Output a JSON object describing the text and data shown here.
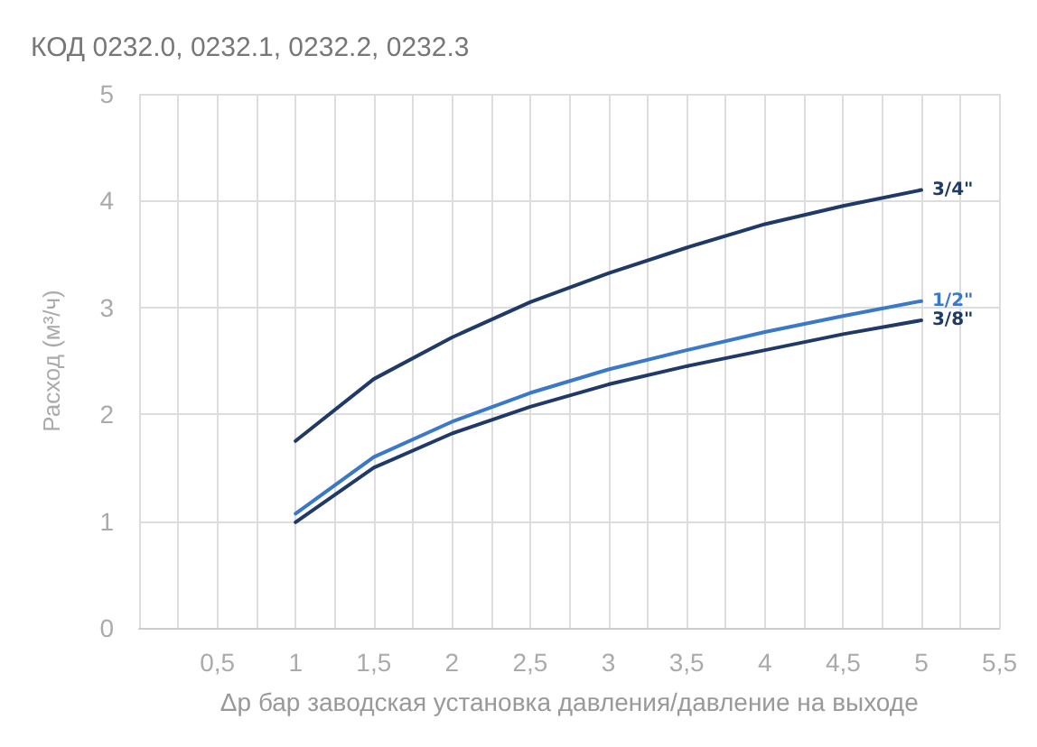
{
  "chart_data": {
    "type": "line",
    "title": "КОД 0232.0, 0232.1, 0232.2, 0232.3",
    "xlabel": "Δр бар заводская установка давления/давление на выходе",
    "ylabel": "Расход (м³/ч)",
    "x": [
      1,
      1.5,
      2,
      2.5,
      3,
      3.5,
      4,
      4.5,
      5
    ],
    "series": [
      {
        "name": "3/4\"",
        "color": "#1f3a68",
        "values": [
          1.75,
          2.33,
          2.72,
          3.05,
          3.32,
          3.56,
          3.78,
          3.95,
          4.1
        ]
      },
      {
        "name": "1/2\"",
        "color": "#3a78c9",
        "values": [
          1.07,
          1.6,
          1.93,
          2.2,
          2.42,
          2.6,
          2.77,
          2.92,
          3.06
        ]
      },
      {
        "name": "3/8\"",
        "color": "#1f3a68",
        "values": [
          0.99,
          1.5,
          1.82,
          2.07,
          2.28,
          2.45,
          2.6,
          2.75,
          2.88
        ]
      }
    ],
    "xlim": [
      0,
      5.5
    ],
    "xticks": [
      {
        "value": 0,
        "label": null
      },
      {
        "value": 0.25,
        "label": null
      },
      {
        "value": 0.5,
        "label": "0,5"
      },
      {
        "value": 0.75,
        "label": null
      },
      {
        "value": 1,
        "label": "1"
      },
      {
        "value": 1.25,
        "label": null
      },
      {
        "value": 1.5,
        "label": "1,5"
      },
      {
        "value": 1.75,
        "label": null
      },
      {
        "value": 2,
        "label": "2"
      },
      {
        "value": 2.25,
        "label": null
      },
      {
        "value": 2.5,
        "label": "2,5"
      },
      {
        "value": 2.75,
        "label": null
      },
      {
        "value": 3,
        "label": "3"
      },
      {
        "value": 3.25,
        "label": null
      },
      {
        "value": 3.5,
        "label": "3,5"
      },
      {
        "value": 3.75,
        "label": null
      },
      {
        "value": 4,
        "label": "4"
      },
      {
        "value": 4.25,
        "label": null
      },
      {
        "value": 4.5,
        "label": "4,5"
      },
      {
        "value": 4.75,
        "label": null
      },
      {
        "value": 5,
        "label": "5"
      },
      {
        "value": 5.25,
        "label": null
      },
      {
        "value": 5.5,
        "label": "5,5"
      }
    ],
    "ylim": [
      0,
      5
    ],
    "yticks": [
      0,
      1,
      2,
      3,
      4,
      5
    ],
    "grid": true,
    "legend": false
  }
}
